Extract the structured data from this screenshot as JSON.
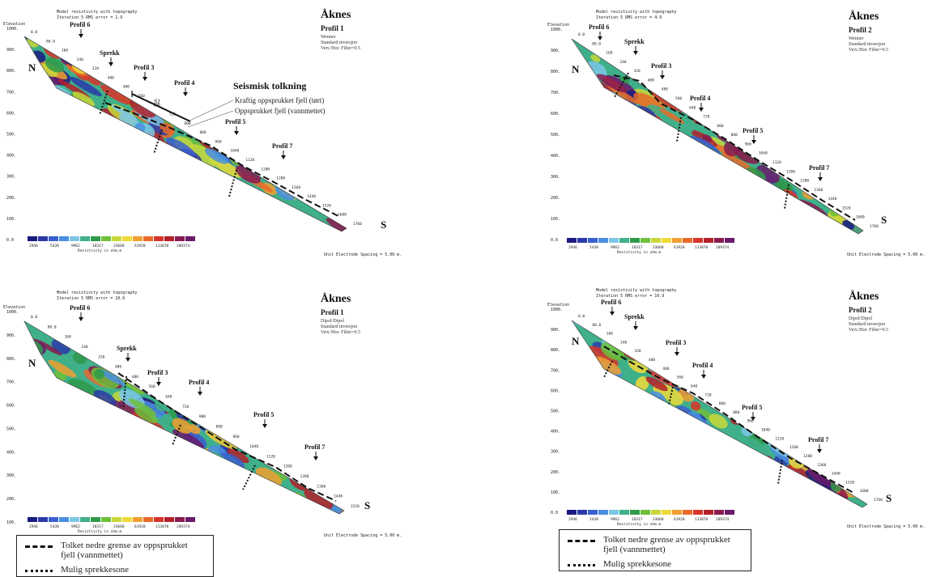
{
  "header": {
    "model_text": "Model resistivity with topography",
    "elevation_label": "Elevation",
    "resistivity_label": "Resistivity in ohm.m",
    "electrode_spacing": "Unit Electrode Spacing = 5.00 m."
  },
  "colorscale": {
    "labels": [
      "2946",
      "5438",
      "9962",
      "18317",
      "33668",
      "61920",
      "113870",
      "209374"
    ],
    "colors": [
      "#1a1a80",
      "#2a3aa8",
      "#3a5fcf",
      "#4a8fe0",
      "#7cc7e6",
      "#3fb08a",
      "#2f9a4a",
      "#6fbf3a",
      "#c8d83a",
      "#f0d93a",
      "#f0a030",
      "#e86a2a",
      "#d8342a",
      "#b3202a",
      "#8a1a50",
      "#6a1a6a"
    ]
  },
  "panels": [
    {
      "id": "wenner-p1",
      "site": "Åknes",
      "profile": "Profil 1",
      "method": "Wenner",
      "inversion": "Standard inversjon",
      "filter": "Vert./Hor. Filter=0.5",
      "iteration": "Iteration 5 RMS error = 1.9",
      "north": "N",
      "south": "S",
      "y_ticks": [
        "1000.",
        "900.",
        "800.",
        "700.",
        "600.",
        "500.",
        "400.",
        "300.",
        "200.",
        "100.",
        "0.0"
      ],
      "markers": [
        "Profil 6",
        "Sprekk",
        "Profil 3",
        "Profil 4",
        "Profil 5",
        "Profil 7"
      ],
      "distances": [
        "0.0",
        "80.0",
        "160",
        "240",
        "320",
        "400",
        "480",
        "560",
        "640",
        "720",
        "800",
        "880",
        "960",
        "1040",
        "1120",
        "1200",
        "1280",
        "1360",
        "1440",
        "1520",
        "1600",
        "1760"
      ],
      "seismic": {
        "title": "Seismisk tolkning",
        "line1": "Kraftig oppsprukket fjell (tørt)",
        "line2": "Oppsprukket fjell (vannmettet)",
        "s1": "S1"
      }
    },
    {
      "id": "wenner-p2",
      "site": "Åknes",
      "profile": "Profil 2",
      "method": "Wenner",
      "inversion": "Standard inversjon",
      "filter": "Vert./Hor. Filter=0.5",
      "iteration": "Iteration 5 RMS error = 4.9",
      "north": "N",
      "south": "S",
      "y_ticks": [
        "1000.",
        "900.",
        "800.",
        "700.",
        "600.",
        "500.",
        "400.",
        "300.",
        "200.",
        "100.",
        "0.0"
      ],
      "markers": [
        "Profil 6",
        "Sprekk",
        "Profil 3",
        "Profil 4",
        "Profil 5",
        "Profil 7"
      ],
      "distances": [
        "0.0",
        "80.0",
        "160",
        "240",
        "320",
        "400",
        "480",
        "560",
        "640",
        "720",
        "800",
        "880",
        "960",
        "1040",
        "1120",
        "1200",
        "1280",
        "1360",
        "1440",
        "1520",
        "1600",
        "1760"
      ]
    },
    {
      "id": "dipol-p1",
      "site": "Åknes",
      "profile": "Profil 1",
      "method": "Dipol/Dipol",
      "inversion": "Standard inversjon",
      "filter": "Vert./Hor. Filter=0.5",
      "iteration": "Iteration 5 RMS error = 10.6",
      "north": "N",
      "south": "S",
      "y_ticks": [
        "1000.",
        "900.",
        "800.",
        "700.",
        "600.",
        "500.",
        "400.",
        "300.",
        "200.",
        "100."
      ],
      "markers": [
        "Profil 6",
        "Sprekk",
        "Profil 3",
        "Profil 4",
        "Profil 5",
        "Profil 7"
      ],
      "distances": [
        "0.0",
        "80.0",
        "160",
        "240",
        "320",
        "400",
        "480",
        "560",
        "640",
        "720",
        "800",
        "880",
        "960",
        "1040",
        "1120",
        "1200",
        "1280",
        "1360",
        "1440",
        "1520"
      ]
    },
    {
      "id": "dipol-p2",
      "site": "Åknes",
      "profile": "Profil 2",
      "method": "Dipol/Dipol",
      "inversion": "Standard inversjon",
      "filter": "Vert./Hor. Filter=0.5",
      "iteration": "Iteration 5 RMS error = 10.9",
      "north": "N",
      "south": "S",
      "y_ticks": [
        "1000.",
        "900.",
        "800.",
        "700.",
        "600.",
        "500.",
        "400.",
        "300.",
        "200.",
        "100.",
        "0.0"
      ],
      "markers": [
        "Profil 6",
        "Sprekk",
        "Profil 3",
        "Profil 4",
        "Profil 5",
        "Profil 7"
      ],
      "distances": [
        "0.0",
        "80.0",
        "160",
        "240",
        "320",
        "400",
        "480",
        "560",
        "640",
        "720",
        "800",
        "880",
        "960",
        "1040",
        "1120",
        "1200",
        "1280",
        "1360",
        "1440",
        "1520",
        "1600",
        "1760"
      ]
    }
  ],
  "legend": {
    "dashed": "Tolket nedre grense av oppsprukket fjell (vannmettet)",
    "dotted": "Mulig sprekkesone"
  }
}
